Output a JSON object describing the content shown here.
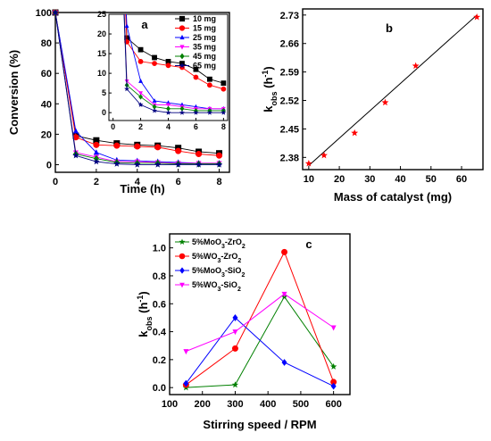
{
  "chart_data": [
    {
      "type": "line",
      "panel": "a",
      "xlabel": "Time (h)",
      "ylabel": "Conversion (%)",
      "xlim": [
        0,
        8.5
      ],
      "ylim": [
        -5,
        100
      ],
      "xticks": [
        "0",
        "2",
        "4",
        "6",
        "8"
      ],
      "yticks": [
        "0",
        "20",
        "40",
        "60",
        "80",
        "100"
      ],
      "x": [
        0,
        1,
        2,
        3,
        4,
        5,
        6,
        7,
        8
      ],
      "series": [
        {
          "name": "10 mg",
          "color": "#000000",
          "marker": "square",
          "values": [
            100,
            19,
            16,
            14,
            13,
            12.5,
            11,
            8.5,
            7.5
          ]
        },
        {
          "name": "15 mg",
          "color": "#ff0000",
          "marker": "circle",
          "values": [
            100,
            18,
            13,
            12.5,
            12,
            11.5,
            9,
            7,
            6
          ]
        },
        {
          "name": "25 mg",
          "color": "#0000ff",
          "marker": "triangle-up",
          "values": [
            100,
            22,
            8,
            3,
            2.5,
            2,
            1.5,
            1,
            1
          ]
        },
        {
          "name": "35 mg",
          "color": "#ff00ff",
          "marker": "triangle-down",
          "values": [
            100,
            8,
            5,
            2,
            2,
            1.5,
            1,
            1,
            1
          ]
        },
        {
          "name": "45 mg",
          "color": "#008000",
          "marker": "diamond",
          "values": [
            100,
            7,
            4,
            1.5,
            1,
            1,
            0.5,
            0.5,
            0.5
          ]
        },
        {
          "name": "65 mg",
          "color": "#000080",
          "marker": "star",
          "values": [
            100,
            6,
            2,
            0.5,
            0,
            0,
            0,
            0,
            0
          ]
        }
      ],
      "inset": {
        "xlim": [
          -0.3,
          8.3
        ],
        "ylim": [
          -2,
          25
        ],
        "xticks": [
          "0",
          "2",
          "4",
          "6",
          "8"
        ],
        "yticks": [
          "0",
          "5",
          "10",
          "15",
          "20",
          "25"
        ]
      }
    },
    {
      "type": "scatter",
      "panel": "b",
      "xlabel": "Mass of catalyst (mg)",
      "ylabel": "kobs (h-1)",
      "xlim": [
        8,
        67
      ],
      "ylim": [
        2.35,
        2.745
      ],
      "xticks": [
        "10",
        "20",
        "30",
        "40",
        "50",
        "60"
      ],
      "yticks": [
        "2.38",
        "2.45",
        "2.52",
        "2.59",
        "2.66",
        "2.73"
      ],
      "x": [
        10,
        15,
        25,
        35,
        45,
        65
      ],
      "values": [
        2.365,
        2.385,
        2.44,
        2.515,
        2.605,
        2.725
      ],
      "fit": [
        [
          10,
          2.36
        ],
        [
          65,
          2.73
        ]
      ],
      "color": "#ff0000",
      "marker": "star"
    },
    {
      "type": "line",
      "panel": "c",
      "xlabel": "Stirring speed / RPM",
      "ylabel": "kobs (h-1)",
      "xlim": [
        100,
        650
      ],
      "ylim": [
        -0.05,
        1.1
      ],
      "xticks": [
        "100",
        "200",
        "300",
        "400",
        "500",
        "600",
        "700"
      ],
      "yticks": [
        "0.0",
        "0.2",
        "0.4",
        "0.6",
        "0.8",
        "1.0"
      ],
      "x": [
        150,
        300,
        450,
        600
      ],
      "series": [
        {
          "name": "5%MoO3-ZrO2",
          "color": "#008000",
          "marker": "star",
          "values": [
            0.0,
            0.02,
            0.65,
            0.15
          ]
        },
        {
          "name": "5%WO3-ZrO2",
          "color": "#ff0000",
          "marker": "circle",
          "values": [
            0.02,
            0.28,
            0.97,
            0.04
          ]
        },
        {
          "name": "5%MoO3-SiO2",
          "color": "#0000ff",
          "marker": "diamond",
          "values": [
            0.03,
            0.5,
            0.18,
            0.01
          ]
        },
        {
          "name": "5%WO3-SiO2",
          "color": "#ff00ff",
          "marker": "triangle-down",
          "values": [
            0.26,
            0.4,
            0.67,
            0.43
          ]
        }
      ]
    }
  ]
}
